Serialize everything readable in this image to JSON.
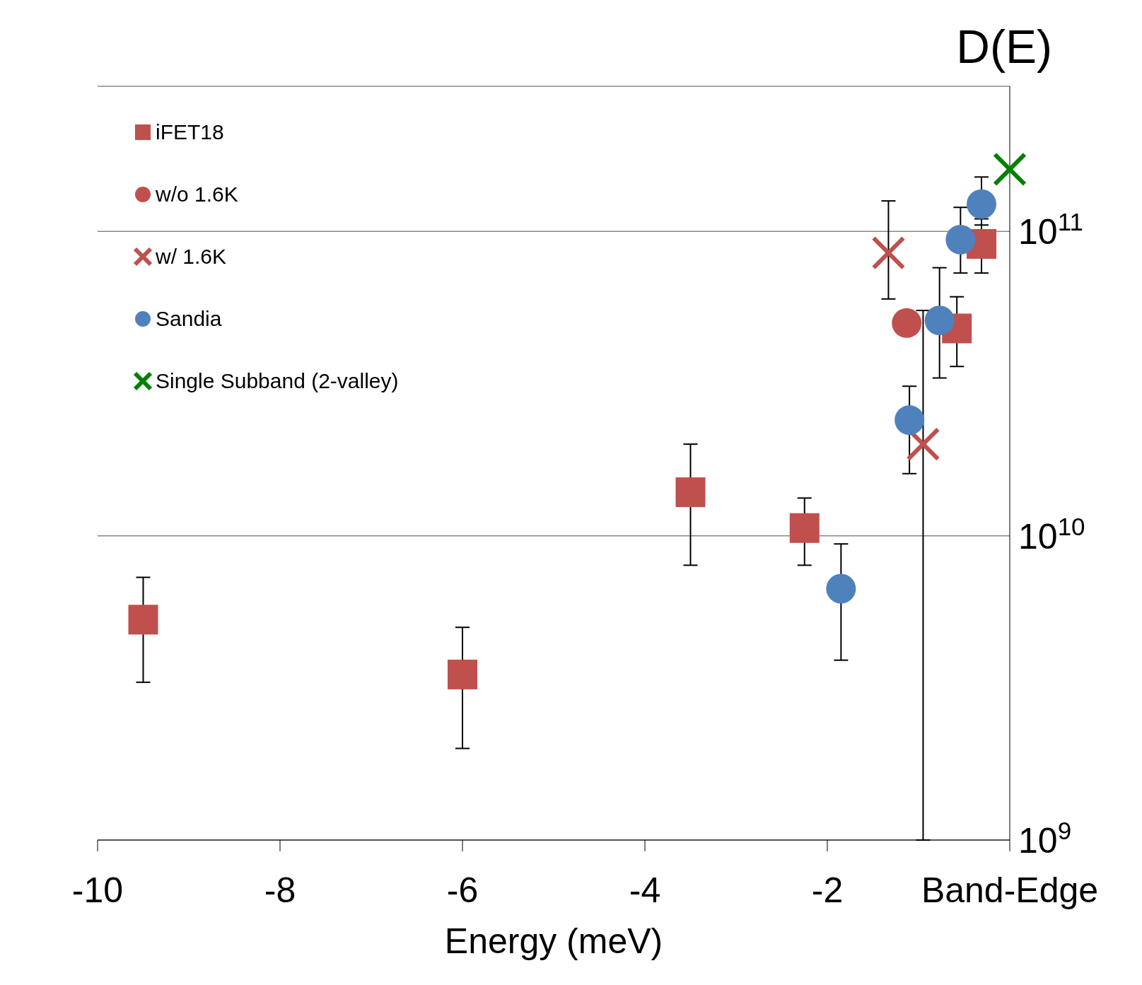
{
  "chart_data": {
    "type": "scatter",
    "title": "D(E)",
    "xlabel": "Energy (meV)",
    "xlim": [
      -10,
      0
    ],
    "xticks": [
      -10,
      -8,
      -6,
      -4,
      -2,
      {
        "value": 0,
        "label": "Band-Edge"
      }
    ],
    "ylim": [
      1000000000,
      300000000000
    ],
    "yticks": [
      {
        "value": 1000000000,
        "label": "10$^{9}$"
      },
      {
        "value": 10000000000,
        "label": "10$^{10}$"
      },
      {
        "value": 100000000000,
        "label": "10$^{11}$"
      }
    ],
    "log": "y",
    "grid": "y",
    "legend": "top left",
    "series": [
      {
        "name": "iFET18",
        "color": "#c0504d",
        "marker": "square",
        "x": [
          -9.5,
          -6,
          -3.5,
          -2.25,
          -0.58,
          -0.31
        ],
        "values": [
          5300000000,
          3500000000,
          13900000000,
          10600000000,
          48000000000,
          91000000000
        ],
        "errors": [
          [
            3300000000,
            7300000000
          ],
          [
            2000000000,
            5000000000
          ],
          [
            8000000000,
            20000000000
          ],
          [
            8000000000,
            13300000000
          ],
          [
            36000000000,
            61000000000
          ],
          [
            73000000000,
            110000000000
          ]
        ]
      },
      {
        "name": "w/o 1.6K",
        "color": "#c0504d",
        "marker": "circle",
        "x": [
          -1.13
        ],
        "values": [
          50000000000
        ]
      },
      {
        "name": "w/ 1.6K",
        "color": "#c0504d",
        "marker": "cross",
        "x": [
          -1.33,
          -0.95
        ],
        "values": [
          85000000000,
          20000000000
        ],
        "errors": [
          [
            60000000000,
            126000000000
          ],
          [
            1000000000,
            55000000000
          ]
        ]
      },
      {
        "name": "Sandia",
        "color": "#4f81bd",
        "marker": "circle",
        "x": [
          -1.85,
          -1.1,
          -0.77,
          -0.54,
          -0.31
        ],
        "values": [
          6700000000,
          24000000000,
          51000000000,
          94000000000,
          123000000000
        ],
        "errors": [
          [
            3900000000,
            9400000000
          ],
          [
            16000000000,
            31000000000
          ],
          [
            33000000000,
            76000000000
          ],
          [
            73000000000,
            120000000000
          ],
          [
            105000000000,
            151000000000
          ]
        ]
      },
      {
        "name": "Single Subband (2-valley)",
        "color": "#008000",
        "marker": "cross",
        "x": [
          0
        ],
        "values": [
          160000000000
        ]
      }
    ]
  }
}
